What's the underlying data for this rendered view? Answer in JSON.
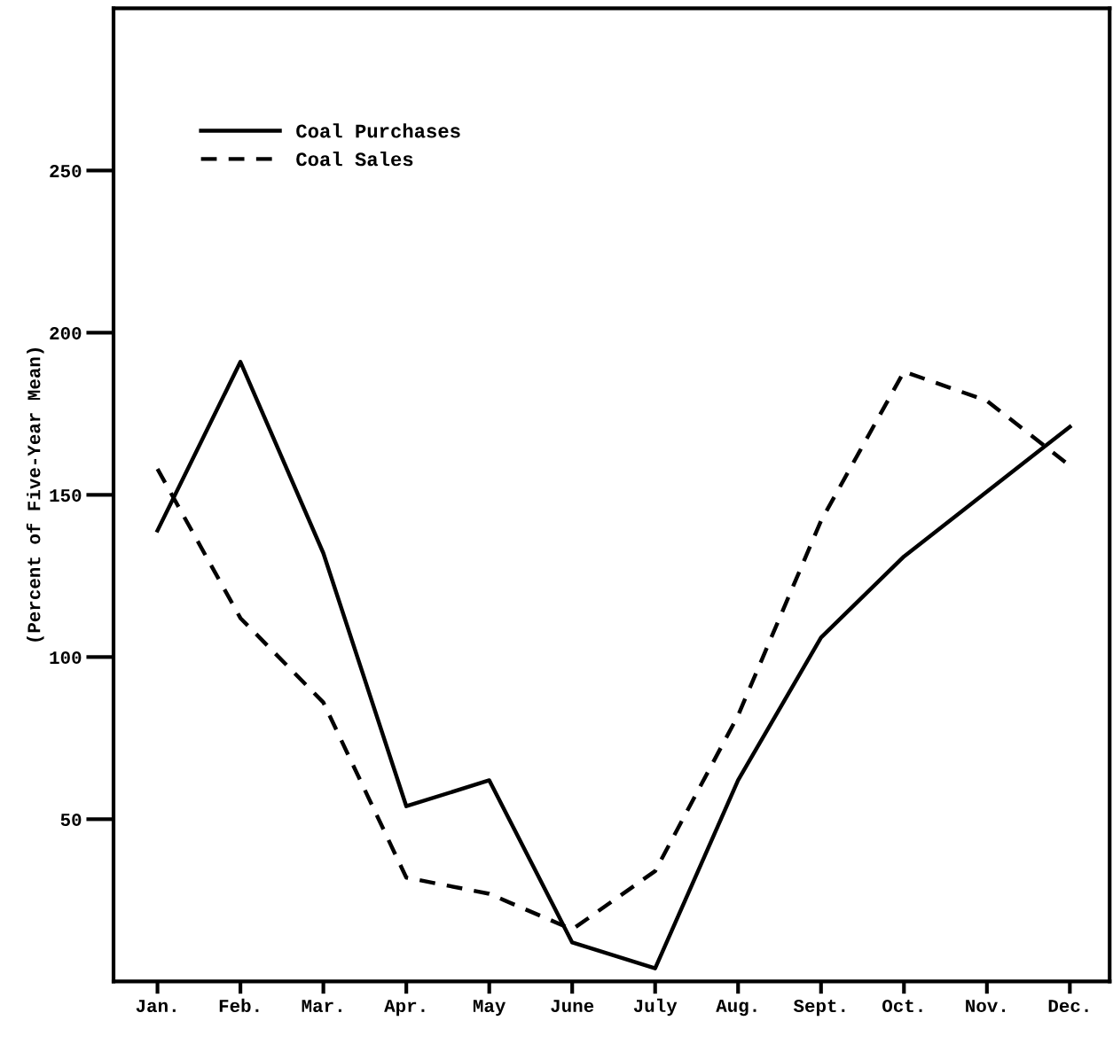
{
  "chart_data": {
    "type": "line",
    "ylabel": "(Percent of Five-Year Mean)",
    "categories": [
      "Jan.",
      "Feb.",
      "Mar.",
      "Apr.",
      "May",
      "June",
      "July",
      "Aug.",
      "Sept.",
      "Oct.",
      "Nov.",
      "Dec."
    ],
    "series": [
      {
        "name": "Coal Purchases",
        "color": "#000000",
        "line_style": "solid",
        "values": [
          139,
          191,
          132,
          54,
          62,
          12,
          4,
          62,
          106,
          131,
          151,
          171
        ]
      },
      {
        "name": "Coal Sales",
        "color": "#000000",
        "line_style": "dashed",
        "values": [
          158,
          112,
          86,
          32,
          27,
          16,
          34,
          82,
          142,
          188,
          179,
          159
        ]
      }
    ],
    "ylim": [
      0,
      300
    ],
    "yticks": [
      50,
      100,
      150,
      200,
      250
    ],
    "grid": false,
    "legend": "top left",
    "marker": "none"
  }
}
